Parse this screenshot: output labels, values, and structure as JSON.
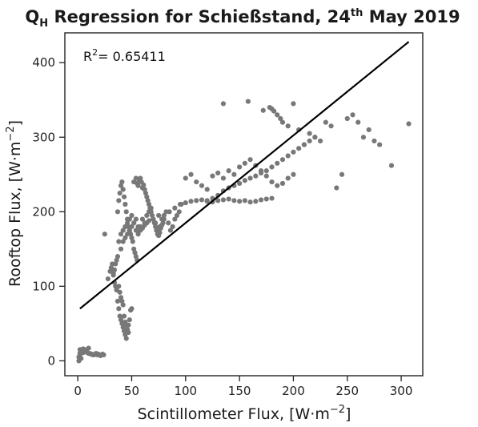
{
  "chart_data": {
    "type": "scatter",
    "title": {
      "prefix": "Q",
      "subscript": "H",
      "middle": " Regression for Schießstand, 24",
      "superscript": "th",
      "suffix": " May 2019"
    },
    "xlabel": "Scintillometer Flux, [W·m",
    "xlabel_exp": "−2",
    "xlabel_end": "]",
    "ylabel": "Rooftop Flux, [W·m",
    "ylabel_exp": "−2",
    "ylabel_end": "]",
    "annotation": {
      "label": "R",
      "exp": "2",
      "value": "= 0.65411"
    },
    "xlim": [
      -12,
      320
    ],
    "ylim": [
      -20,
      440
    ],
    "xticks": [
      0,
      50,
      100,
      150,
      200,
      250,
      300
    ],
    "yticks": [
      0,
      100,
      200,
      300,
      400
    ],
    "grid": false,
    "colors": {
      "points": "#787878",
      "line": "#000000",
      "axes": "#222222"
    },
    "regression": {
      "x": [
        2,
        307
      ],
      "y": [
        70,
        428
      ]
    },
    "points": {
      "x": [
        1,
        2,
        3,
        2,
        1,
        3,
        4,
        2,
        5,
        3,
        6,
        7,
        8,
        9,
        10,
        11,
        12,
        13,
        14,
        15,
        16,
        17,
        18,
        19,
        20,
        21,
        22,
        23,
        24,
        8,
        10,
        4,
        5,
        6,
        3,
        2,
        25,
        28,
        30,
        31,
        32,
        33,
        34,
        35,
        36,
        37,
        38,
        39,
        40,
        41,
        42,
        43,
        44,
        45,
        46,
        47,
        48,
        49,
        50,
        33,
        34,
        35,
        36,
        37,
        38,
        39,
        40,
        41,
        42,
        43,
        44,
        45,
        46,
        47,
        37,
        38,
        39,
        40,
        41,
        42,
        43,
        44,
        45,
        46,
        47,
        48,
        49,
        50,
        51,
        52,
        53,
        54,
        55,
        38,
        40,
        42,
        44,
        46,
        48,
        50,
        52,
        54,
        56,
        58,
        60,
        62,
        64,
        66,
        68,
        70,
        72,
        74,
        76,
        78,
        80,
        82,
        84,
        86,
        88,
        90,
        92,
        94,
        96,
        52,
        54,
        55,
        56,
        57,
        58,
        59,
        60,
        61,
        62,
        63,
        64,
        65,
        66,
        67,
        68,
        69,
        70,
        71,
        72,
        73,
        74,
        75,
        76,
        77,
        78,
        79,
        80,
        40,
        42,
        44,
        46,
        48,
        50,
        52,
        54,
        56,
        58,
        60,
        62,
        64,
        66,
        70,
        75,
        85,
        90,
        95,
        100,
        105,
        110,
        115,
        120,
        125,
        130,
        135,
        140,
        145,
        150,
        155,
        160,
        165,
        170,
        175,
        180,
        100,
        105,
        110,
        115,
        120,
        125,
        130,
        135,
        140,
        145,
        150,
        155,
        160,
        165,
        170,
        175,
        180,
        185,
        190,
        195,
        200,
        120,
        125,
        130,
        135,
        140,
        145,
        150,
        155,
        160,
        165,
        170,
        175,
        180,
        185,
        190,
        195,
        200,
        205,
        210,
        215,
        220,
        135,
        158,
        172,
        178,
        180,
        182,
        185,
        188,
        190,
        195,
        200,
        205,
        210,
        215,
        220,
        225,
        230,
        235,
        240,
        245,
        250,
        255,
        260,
        265,
        270,
        275,
        280,
        291,
        307
      ],
      "y": [
        5,
        10,
        3,
        8,
        0,
        12,
        14,
        15,
        16,
        15,
        14,
        13,
        12,
        11,
        10,
        10,
        9,
        9,
        8,
        8,
        9,
        10,
        8,
        9,
        8,
        7,
        8,
        9,
        8,
        15,
        17,
        12,
        11,
        14,
        13,
        6,
        170,
        110,
        120,
        125,
        130,
        118,
        105,
        100,
        95,
        80,
        70,
        60,
        55,
        50,
        45,
        40,
        35,
        30,
        40,
        48,
        55,
        68,
        70,
        115,
        122,
        130,
        135,
        140,
        100,
        92,
        85,
        80,
        75,
        60,
        52,
        48,
        42,
        38,
        200,
        215,
        225,
        235,
        240,
        230,
        220,
        210,
        200,
        190,
        180,
        175,
        170,
        165,
        160,
        150,
        145,
        140,
        135,
        160,
        170,
        175,
        180,
        185,
        190,
        195,
        185,
        175,
        170,
        180,
        190,
        185,
        195,
        200,
        205,
        190,
        185,
        175,
        180,
        190,
        195,
        200,
        185,
        175,
        180,
        190,
        195,
        200,
        210,
        240,
        245,
        238,
        235,
        242,
        245,
        240,
        232,
        236,
        230,
        225,
        220,
        215,
        210,
        205,
        200,
        195,
        190,
        185,
        180,
        175,
        170,
        168,
        172,
        178,
        182,
        185,
        190,
        150,
        160,
        165,
        170,
        175,
        180,
        185,
        190,
        180,
        175,
        178,
        182,
        185,
        188,
        190,
        195,
        200,
        205,
        210,
        212,
        214,
        215,
        216,
        214,
        213,
        215,
        216,
        217,
        215,
        214,
        215,
        213,
        214,
        216,
        217,
        218,
        245,
        250,
        240,
        235,
        230,
        248,
        252,
        245,
        255,
        250,
        260,
        265,
        270,
        262,
        255,
        248,
        240,
        235,
        238,
        245,
        250,
        215,
        218,
        222,
        228,
        232,
        235,
        238,
        242,
        245,
        248,
        252,
        255,
        260,
        265,
        270,
        275,
        280,
        285,
        290,
        295,
        300,
        345,
        348,
        336,
        340,
        338,
        335,
        330,
        325,
        320,
        315,
        345,
        310,
        290,
        305,
        300,
        295,
        320,
        315,
        232,
        250,
        325,
        330,
        320,
        300,
        310,
        295,
        290,
        262,
        318
      ]
    }
  }
}
